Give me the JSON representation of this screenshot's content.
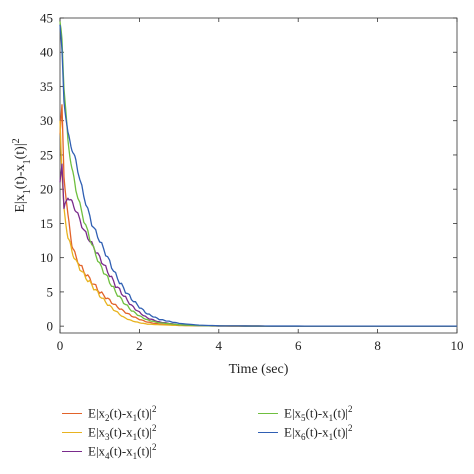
{
  "chart_data": {
    "type": "line",
    "xlabel": "Time (sec)",
    "ylabel": "E|x_1(t)-x_1(t)|^2",
    "xlim": [
      0,
      10
    ],
    "ylim": [
      -1,
      45
    ],
    "xticks": [
      0,
      2,
      4,
      6,
      8,
      10
    ],
    "yticks": [
      0,
      5,
      10,
      15,
      20,
      25,
      30,
      35,
      40,
      45
    ],
    "grid": false,
    "legend_placement": "below",
    "series": [
      {
        "name": "E|x_2(t)-x_1(t)|^2",
        "color": "#e2632a",
        "x": [
          0,
          0.05,
          0.1,
          0.2,
          0.3,
          0.4,
          0.6,
          0.8,
          1.0,
          1.2,
          1.4,
          1.6,
          1.8,
          2.0,
          2.2,
          2.5,
          3.0,
          3.5,
          4.0,
          5,
          6,
          7,
          8,
          9,
          10
        ],
        "y": [
          28,
          32,
          22,
          16,
          12,
          10,
          8,
          6.5,
          5,
          4,
          3,
          2.2,
          1.5,
          1.0,
          0.6,
          0.3,
          0.1,
          0.05,
          0.02,
          0.01,
          0,
          0,
          0,
          0,
          0
        ]
      },
      {
        "name": "E|x_3(t)-x_1(t)|^2",
        "color": "#e8b320",
        "x": [
          0,
          0.05,
          0.1,
          0.2,
          0.3,
          0.4,
          0.6,
          0.8,
          1.0,
          1.2,
          1.4,
          1.6,
          1.8,
          2.0,
          2.2,
          2.5,
          3.0,
          3.5,
          4.0,
          5,
          6,
          7,
          8,
          9,
          10
        ],
        "y": [
          30,
          22,
          17,
          13,
          11,
          9.5,
          7.5,
          6,
          4.5,
          3.2,
          2.2,
          1.3,
          0.8,
          0.5,
          0.3,
          0.2,
          0.1,
          0.05,
          0.02,
          0.01,
          0,
          0,
          0,
          0,
          0
        ]
      },
      {
        "name": "E|x_4(t)-x_1(t)|^2",
        "color": "#7a2b8c",
        "x": [
          0,
          0.05,
          0.1,
          0.2,
          0.3,
          0.4,
          0.6,
          0.8,
          1.0,
          1.2,
          1.4,
          1.6,
          1.8,
          2.0,
          2.2,
          2.5,
          3.0,
          3.5,
          4.0,
          5,
          6,
          7,
          8,
          9,
          10
        ],
        "y": [
          21,
          24,
          17,
          19,
          18,
          17,
          14,
          12,
          10,
          8,
          6,
          4.5,
          3,
          2,
          1.2,
          0.6,
          0.2,
          0.08,
          0.03,
          0.01,
          0,
          0,
          0,
          0,
          0
        ]
      },
      {
        "name": "E|x_5(t)-x_1(t)|^2",
        "color": "#6fbf3f",
        "x": [
          0,
          0.05,
          0.1,
          0.2,
          0.3,
          0.4,
          0.6,
          0.8,
          1.0,
          1.2,
          1.4,
          1.6,
          1.8,
          2.0,
          2.2,
          2.5,
          3.0,
          3.5,
          4.0,
          5,
          6,
          7,
          8,
          9,
          10
        ],
        "y": [
          44.5,
          42,
          35,
          27,
          23,
          20,
          15.5,
          12,
          9,
          7,
          5,
          3.5,
          2.3,
          1.5,
          0.9,
          0.5,
          0.2,
          0.08,
          0.03,
          0.01,
          0,
          0,
          0,
          0,
          0
        ]
      },
      {
        "name": "E|x_6(t)-x_1(t)|^2",
        "color": "#2f5fb3",
        "x": [
          0,
          0.05,
          0.1,
          0.2,
          0.3,
          0.4,
          0.6,
          0.8,
          1.0,
          1.2,
          1.4,
          1.6,
          1.8,
          2.0,
          2.2,
          2.5,
          3.0,
          3.5,
          4.0,
          5,
          6,
          7,
          8,
          9,
          10
        ],
        "y": [
          44,
          40,
          33,
          28,
          26,
          24,
          19,
          15,
          12.5,
          10,
          7.5,
          5.5,
          4,
          2.8,
          1.8,
          1.0,
          0.4,
          0.15,
          0.05,
          0.02,
          0.01,
          0,
          0,
          0,
          0
        ]
      }
    ]
  }
}
